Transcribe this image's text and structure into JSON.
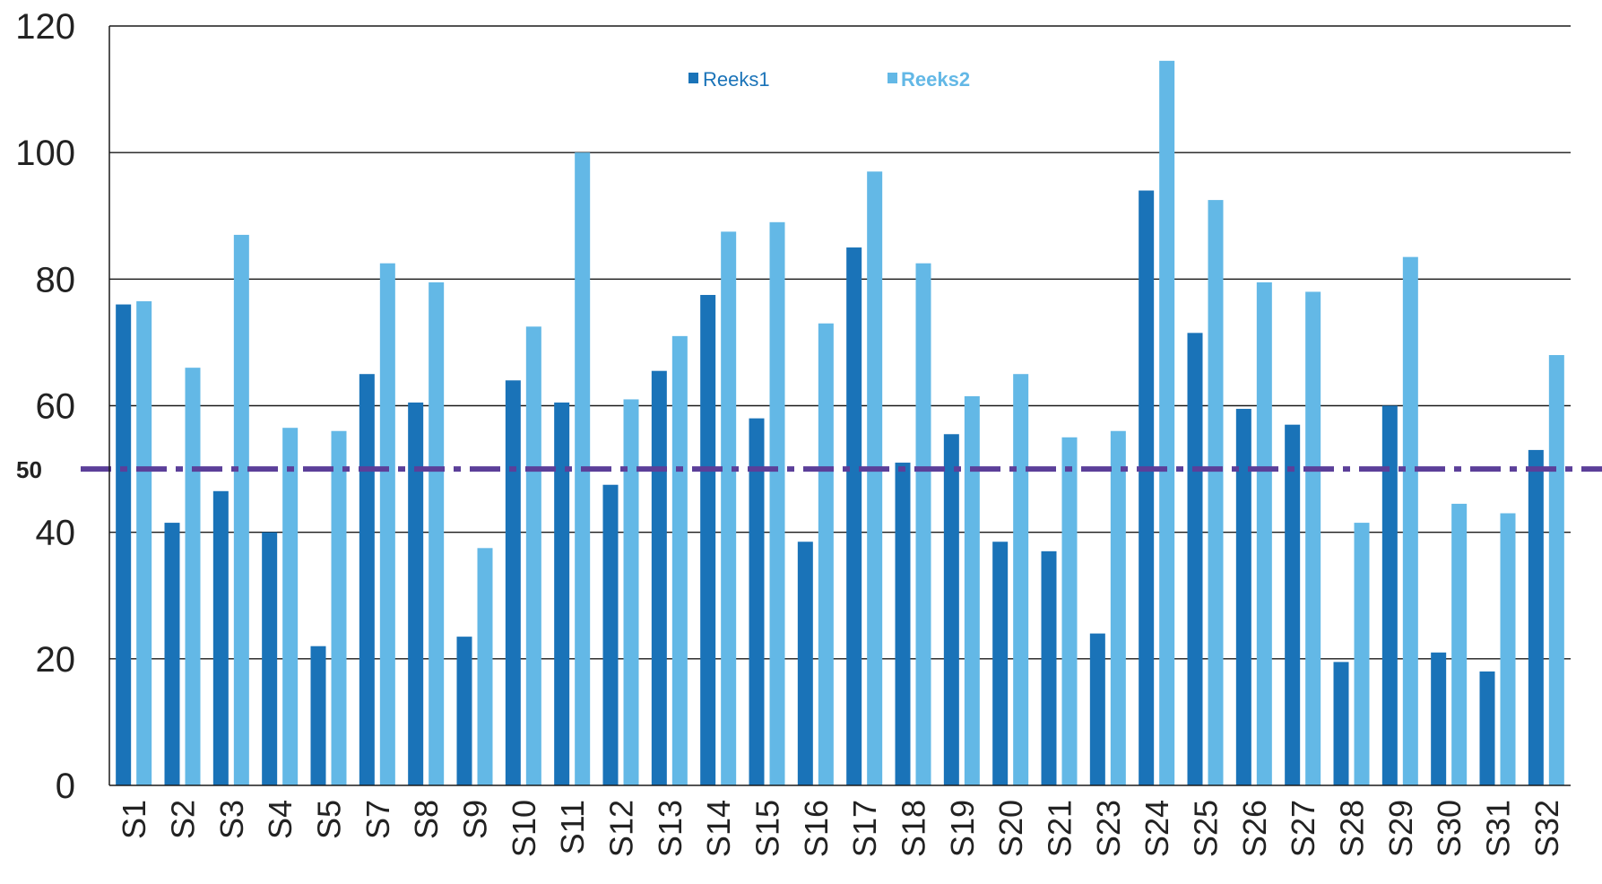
{
  "chart_data": {
    "type": "bar",
    "title": "",
    "xlabel": "",
    "ylabel": "",
    "ylim": [
      0,
      120
    ],
    "yticks": [
      0,
      20,
      40,
      60,
      80,
      100,
      120
    ],
    "grid": true,
    "legend_position": "top-center",
    "reference_line": {
      "value": 50,
      "label": "50",
      "color": "#5b3f99",
      "style": "dash-dot"
    },
    "categories": [
      "S1",
      "S2",
      "S3",
      "S4",
      "S5",
      "S7",
      "S8",
      "S9",
      "S10",
      "S11",
      "S12",
      "S13",
      "S14",
      "S15",
      "S16",
      "S17",
      "S18",
      "S19",
      "S20",
      "S21",
      "S23",
      "S24",
      "S25",
      "S26",
      "S27",
      "S28",
      "S29",
      "S30",
      "S31",
      "S32"
    ],
    "series": [
      {
        "name": "Reeks1",
        "color": "#1a73b8",
        "values": [
          76,
          41.5,
          46.5,
          40,
          22,
          65,
          60.5,
          23.5,
          64,
          60.5,
          47.5,
          65.5,
          77.5,
          58,
          38.5,
          85,
          51,
          55.5,
          38.5,
          37,
          24,
          94,
          71.5,
          59.5,
          57,
          19.5,
          60,
          21,
          18,
          53
        ]
      },
      {
        "name": "Reeks2",
        "color": "#63b8e6",
        "values": [
          76.5,
          66,
          87,
          56.5,
          56,
          82.5,
          79.5,
          37.5,
          72.5,
          100,
          61,
          71,
          87.5,
          89,
          73,
          97,
          82.5,
          61.5,
          65,
          55,
          56,
          114.5,
          92.5,
          79.5,
          78,
          41.5,
          83.5,
          44.5,
          43,
          68
        ]
      }
    ]
  }
}
